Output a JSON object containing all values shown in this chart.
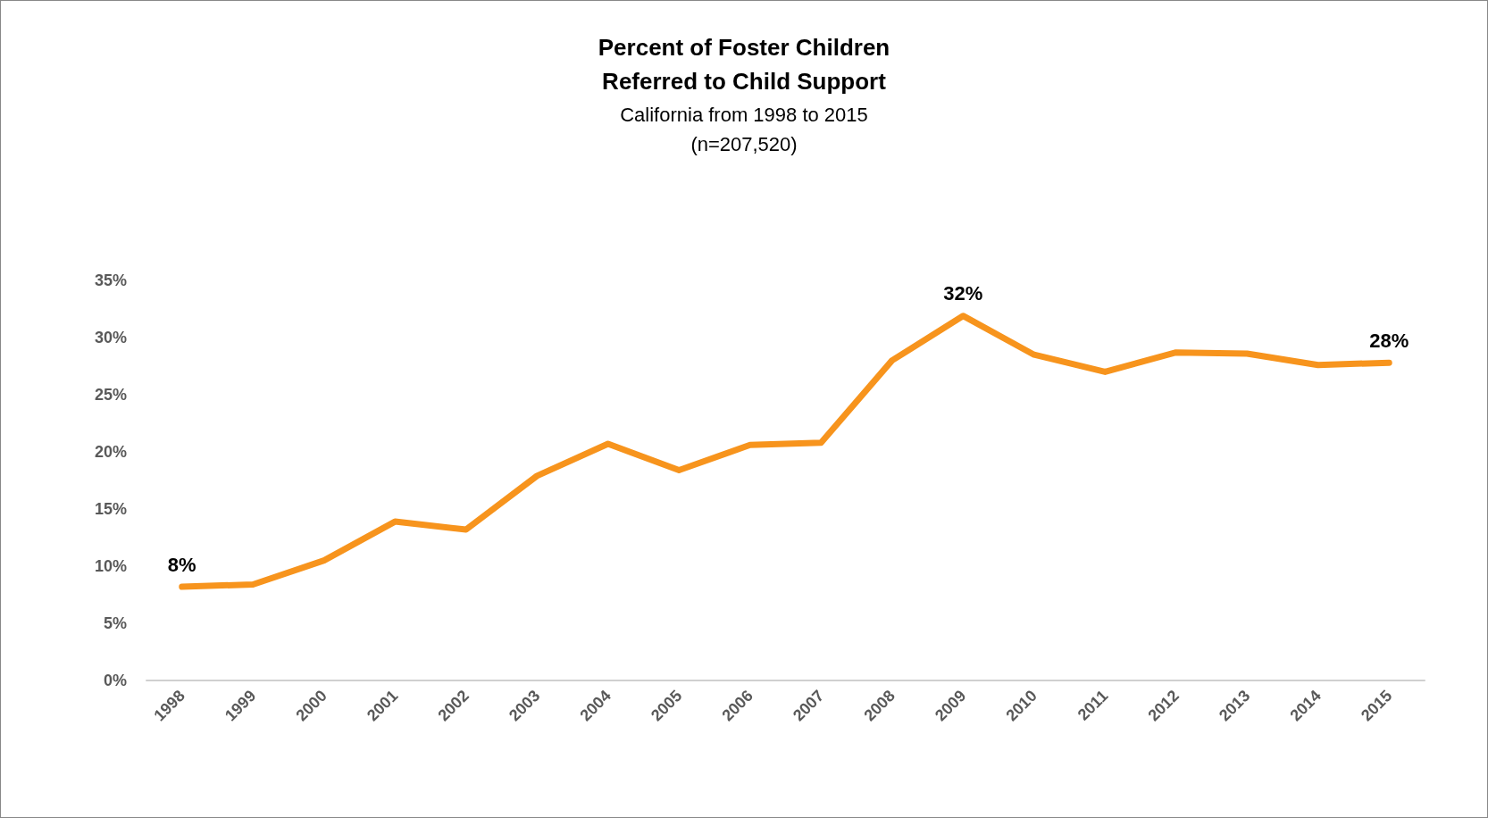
{
  "chart_data": {
    "type": "line",
    "title": "Percent of Foster Children\nReferred to Child Support",
    "subtitle": "California from 1998 to 2015\n(n=207,520)",
    "categories": [
      "1998",
      "1999",
      "2000",
      "2001",
      "2002",
      "2003",
      "2004",
      "2005",
      "2006",
      "2007",
      "2008",
      "2009",
      "2010",
      "2011",
      "2012",
      "2013",
      "2014",
      "2015"
    ],
    "series": [
      {
        "color": "#f7941d",
        "values": [
          8.2,
          8.4,
          10.5,
          13.9,
          13.2,
          17.9,
          20.7,
          18.4,
          20.6,
          20.8,
          28.0,
          31.9,
          28.5,
          27.0,
          28.7,
          28.6,
          27.6,
          27.8
        ],
        "value_labels": [
          "8%",
          null,
          null,
          null,
          null,
          null,
          null,
          null,
          null,
          null,
          null,
          "32%",
          null,
          null,
          null,
          null,
          null,
          "28%"
        ]
      }
    ],
    "ylim": [
      0,
      35
    ],
    "yticks": [
      {
        "value": 0,
        "label": "0%"
      },
      {
        "value": 5,
        "label": "5%"
      },
      {
        "value": 10,
        "label": "10%"
      },
      {
        "value": 15,
        "label": "15%"
      },
      {
        "value": 20,
        "label": "20%"
      },
      {
        "value": 25,
        "label": "25%"
      },
      {
        "value": 30,
        "label": "30%"
      },
      {
        "value": 35,
        "label": "35%"
      }
    ],
    "grid": false,
    "marker": "none",
    "line_style": "solid"
  }
}
